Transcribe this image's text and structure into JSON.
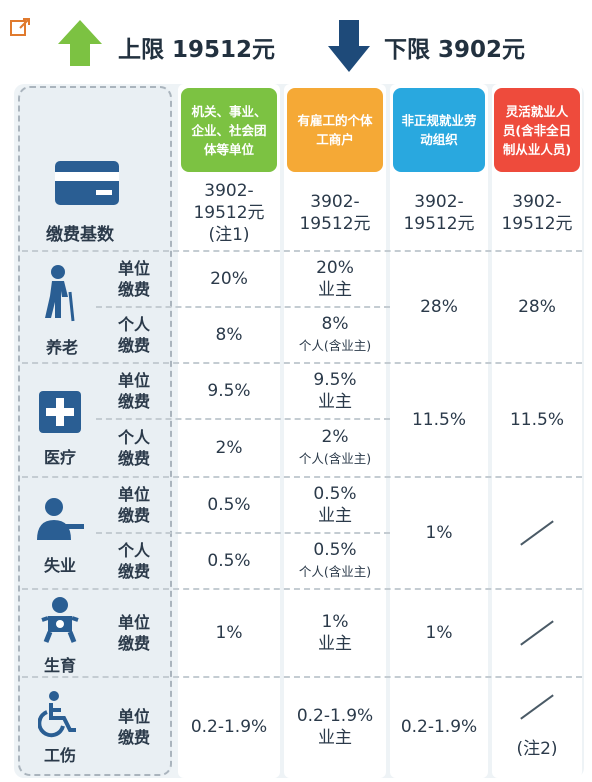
{
  "top": {
    "upper_label": "上限 19512元",
    "lower_label": "下限 3902元",
    "colors": {
      "up_arrow": "#7cc242",
      "down_arrow": "#1e4a79"
    }
  },
  "columns": [
    {
      "header": "机关、事业、企业、社会团体等单位",
      "color": "#7cc242"
    },
    {
      "header": "有雇工的个体工商户",
      "color": "#f5a936"
    },
    {
      "header": "非正规就业劳动组织",
      "color": "#29a8df"
    },
    {
      "header": "灵活就业人员(含非全日制从业人员)",
      "color": "#ee4b3c"
    }
  ],
  "base": {
    "label": "缴费基数",
    "values": [
      {
        "line1": "3902-",
        "line2": "19512元",
        "line3": "(注1)"
      },
      {
        "line1": "3902-",
        "line2": "19512元"
      },
      {
        "line1": "3902-",
        "line2": "19512元"
      },
      {
        "line1": "3902-",
        "line2": "19512元"
      }
    ]
  },
  "sub_labels": {
    "unit": "单位\n缴费",
    "personal": "个人\n缴费"
  },
  "categories": {
    "pension": {
      "name": "养老",
      "unit": [
        "20%",
        "20%",
        "业主"
      ],
      "personal": [
        "8%",
        "8%",
        "个人(含业主)"
      ],
      "merged": [
        "28%",
        "28%"
      ]
    },
    "medical": {
      "name": "医疗",
      "unit": [
        "9.5%",
        "9.5%",
        "业主"
      ],
      "personal": [
        "2%",
        "2%",
        "个人(含业主)"
      ],
      "merged": [
        "11.5%",
        "11.5%"
      ]
    },
    "unemployment": {
      "name": "失业",
      "unit": [
        "0.5%",
        "0.5%",
        "业主"
      ],
      "personal": [
        "0.5%",
        "0.5%",
        "个人(含业主)"
      ],
      "merged": [
        "1%"
      ]
    },
    "maternity": {
      "name": "生育",
      "unit": [
        "1%",
        "1%",
        "业主",
        "1%"
      ]
    },
    "injury": {
      "name": "工伤",
      "unit": [
        "0.2-1.9%",
        "0.2-1.9%",
        "业主",
        "0.2-1.9%"
      ],
      "note": "(注2)"
    }
  }
}
